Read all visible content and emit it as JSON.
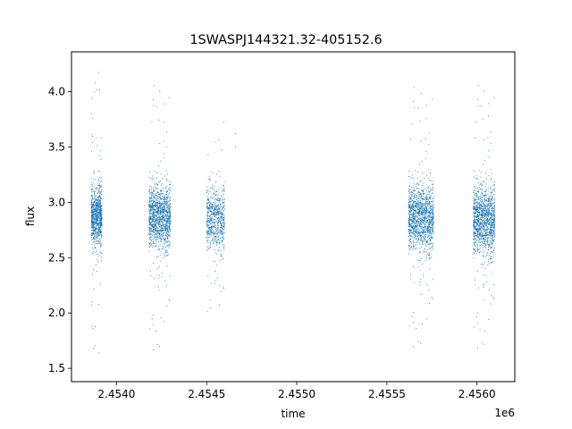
{
  "chart_data": {
    "type": "scatter",
    "title": "1SWASPJ144321.32-405152.6",
    "xlabel": "time",
    "ylabel": "flux",
    "x_offset_label": "1e6",
    "xlim": [
      2.45375,
      2.45621
    ],
    "ylim": [
      1.38,
      4.36
    ],
    "x_ticks": [
      {
        "value": 2.454,
        "label": "2.4540"
      },
      {
        "value": 2.4545,
        "label": "2.4545"
      },
      {
        "value": 2.455,
        "label": "2.4550"
      },
      {
        "value": 2.4555,
        "label": "2.4555"
      },
      {
        "value": 2.456,
        "label": "2.4560"
      }
    ],
    "y_ticks": [
      {
        "value": 1.5,
        "label": "1.5"
      },
      {
        "value": 2.0,
        "label": "2.0"
      },
      {
        "value": 2.5,
        "label": "2.5"
      },
      {
        "value": 3.0,
        "label": "3.0"
      },
      {
        "value": 3.5,
        "label": "3.5"
      },
      {
        "value": 4.0,
        "label": "4.0"
      }
    ],
    "grid": false,
    "marker_color": "#1f77b4",
    "observing_seasons": [
      {
        "x_start": 2.45386,
        "x_end": 2.45392,
        "flux_center": 2.88,
        "flux_spread": 0.2,
        "flux_min": 1.52,
        "flux_max": 4.27,
        "points": 900
      },
      {
        "x_start": 2.45418,
        "x_end": 2.4543,
        "flux_center": 2.87,
        "flux_spread": 0.21,
        "flux_min": 1.53,
        "flux_max": 4.22,
        "points": 1300
      },
      {
        "x_start": 2.4545,
        "x_end": 2.4546,
        "flux_center": 2.85,
        "flux_spread": 0.22,
        "flux_min": 1.75,
        "flux_max": 3.95,
        "points": 700
      },
      {
        "x_start": 2.45562,
        "x_end": 2.45576,
        "flux_center": 2.86,
        "flux_spread": 0.22,
        "flux_min": 1.56,
        "flux_max": 4.2,
        "points": 1400
      },
      {
        "x_start": 2.45598,
        "x_end": 2.4561,
        "flux_center": 2.84,
        "flux_spread": 0.23,
        "flux_min": 1.55,
        "flux_max": 4.22,
        "points": 1300
      }
    ],
    "isolated_points": [
      {
        "x": 2.45466,
        "y": 3.62
      },
      {
        "x": 2.45466,
        "y": 3.5
      }
    ]
  }
}
